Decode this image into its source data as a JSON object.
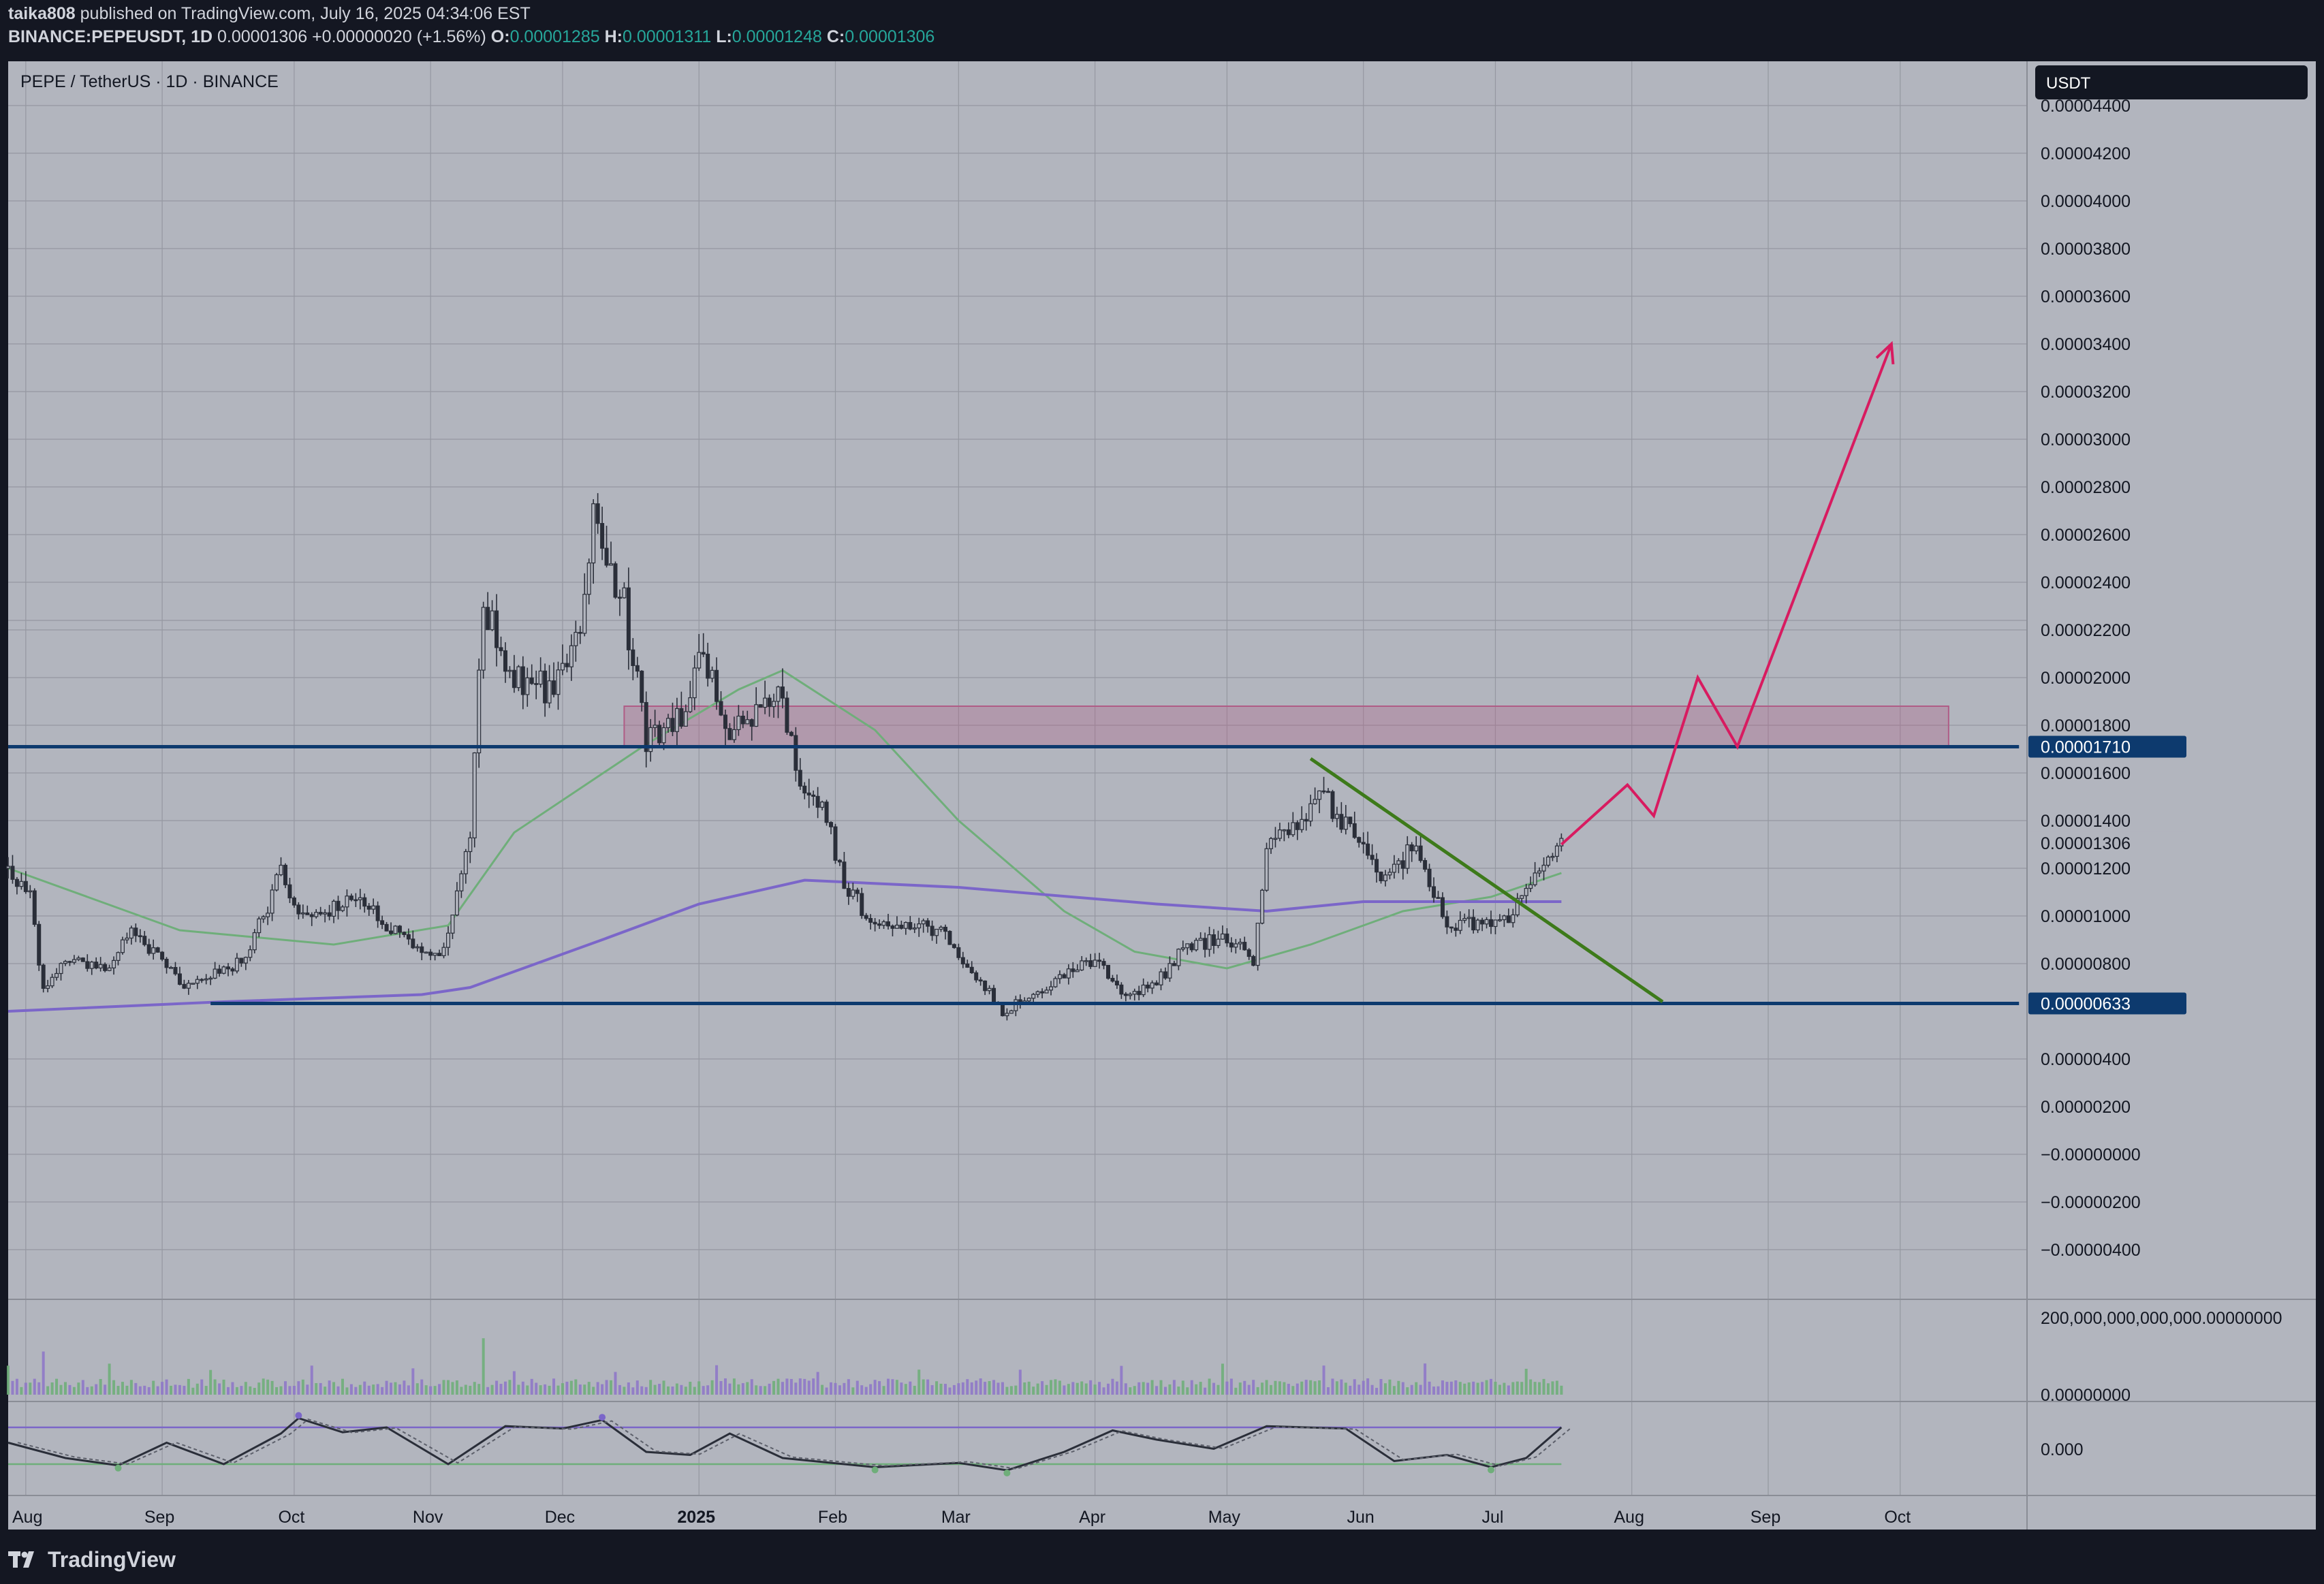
{
  "header": {
    "author": "taika808",
    "published_text": "published on TradingView.com, July 16, 2025 04:34:06 EST",
    "symbol": "BINANCE:PEPEUSDT, 1D",
    "last": "0.00001306",
    "change": "+0.00000020 (+1.56%)",
    "o_label": "O:",
    "o": "0.00001285",
    "h_label": "H:",
    "h": "0.00001311",
    "l_label": "L:",
    "l": "0.00001248",
    "c_label": "C:",
    "c": "0.00001306"
  },
  "chart_title": "PEPE / TetherUS · 1D · BINANCE",
  "currency_label": "USDT",
  "footer": {
    "brand": "TradingView"
  },
  "colors": {
    "pane_bg": "#b2b5be",
    "grid": "#9598a1",
    "candle": "#2a2e39",
    "resistance_zone": "#b05c86",
    "level_line": "#0d3a6e",
    "trendline": "#3d7a1a",
    "projection": "#d81b60",
    "ma_fast": "#6fae7a",
    "ma_slow": "#7b66c9",
    "volume_up": "#6fae7a",
    "volume_down": "#8e78c8"
  },
  "chart_data": [
    {
      "type": "candlestick",
      "title": "PEPE / TetherUS · 1D · BINANCE",
      "x_tick_labels": [
        "Aug",
        "Sep",
        "Oct",
        "Nov",
        "Dec",
        "2025",
        "Feb",
        "Mar",
        "Apr",
        "May",
        "Jun",
        "Jul",
        "Aug",
        "Sep",
        "Oct"
      ],
      "x_range": [
        "2024-07-28",
        "2025-10-28"
      ],
      "y_tick_labels": [
        "0.00004400",
        "0.00004200",
        "0.00004000",
        "0.00003800",
        "0.00003600",
        "0.00003400",
        "0.00003200",
        "0.00003000",
        "0.00002800",
        "0.00002600",
        "0.00002400",
        "0.00002200",
        "0.00002000",
        "0.00001800",
        "0.00001600",
        "0.00001400",
        "0.00001200",
        "0.00001000",
        "0.00000800",
        "0.00000400",
        "0.00000200",
        "−0.00000000",
        "−0.00000200",
        "−0.00000400"
      ],
      "ylim": [
        -4.9e-06,
        4.58e-05
      ],
      "price_tags": [
        {
          "label": "0.00001710",
          "value": 1.71e-05,
          "style": "filled"
        },
        {
          "label": "0.00001306",
          "value": 1.306e-05,
          "style": "plain"
        },
        {
          "label": "0.00000633",
          "value": 6.33e-06,
          "style": "filled"
        }
      ],
      "horizontal_levels": [
        {
          "name": "resistance",
          "value": 1.71e-05,
          "from": "2024-07-28",
          "to": "2025-10-28"
        },
        {
          "name": "support",
          "value": 6.33e-06,
          "from": "2024-09-12",
          "to": "2025-10-28"
        }
      ],
      "resistance_zone": {
        "from": "2024-12-15",
        "to": "2025-10-12",
        "low": 1.71e-05,
        "high": 1.88e-05
      },
      "trendline": [
        {
          "x": "2025-05-20",
          "y": 1.66e-05
        },
        {
          "x": "2025-08-08",
          "y": 6.4e-06
        }
      ],
      "projection_path": [
        {
          "x": "2025-07-16",
          "y": 1.3e-05
        },
        {
          "x": "2025-07-31",
          "y": 1.55e-05
        },
        {
          "x": "2025-08-06",
          "y": 1.42e-05
        },
        {
          "x": "2025-08-16",
          "y": 2e-05
        },
        {
          "x": "2025-08-25",
          "y": 1.71e-05
        },
        {
          "x": "2025-09-29",
          "y": 3.4e-05
        }
      ],
      "candles_anchors": [
        {
          "d": "2024-07-28",
          "p": 1.2e-05
        },
        {
          "d": "2024-08-02",
          "p": 1.08e-05
        },
        {
          "d": "2024-08-05",
          "p": 6.8e-06
        },
        {
          "d": "2024-08-10",
          "p": 8.2e-06
        },
        {
          "d": "2024-08-20",
          "p": 7.8e-06
        },
        {
          "d": "2024-08-25",
          "p": 9.6e-06
        },
        {
          "d": "2024-09-06",
          "p": 7e-06
        },
        {
          "d": "2024-09-20",
          "p": 8.2e-06
        },
        {
          "d": "2024-09-28",
          "p": 1.18e-05
        },
        {
          "d": "2024-10-03",
          "p": 9.8e-06
        },
        {
          "d": "2024-10-15",
          "p": 1.08e-05
        },
        {
          "d": "2024-10-25",
          "p": 9.2e-06
        },
        {
          "d": "2024-11-03",
          "p": 8.2e-06
        },
        {
          "d": "2024-11-10",
          "p": 1.3e-05
        },
        {
          "d": "2024-11-13",
          "p": 2.3e-05
        },
        {
          "d": "2024-11-20",
          "p": 2e-05
        },
        {
          "d": "2024-11-28",
          "p": 1.95e-05
        },
        {
          "d": "2024-12-05",
          "p": 2.15e-05
        },
        {
          "d": "2024-12-08",
          "p": 2.65e-05
        },
        {
          "d": "2024-12-15",
          "p": 2.3e-05
        },
        {
          "d": "2024-12-20",
          "p": 1.75e-05
        },
        {
          "d": "2024-12-28",
          "p": 1.85e-05
        },
        {
          "d": "2025-01-01",
          "p": 2.1e-05
        },
        {
          "d": "2025-01-08",
          "p": 1.78e-05
        },
        {
          "d": "2025-01-15",
          "p": 1.85e-05
        },
        {
          "d": "2025-01-19",
          "p": 2e-05
        },
        {
          "d": "2025-01-23",
          "p": 1.6e-05
        },
        {
          "d": "2025-01-30",
          "p": 1.4e-05
        },
        {
          "d": "2025-02-03",
          "p": 1.15e-05
        },
        {
          "d": "2025-02-10",
          "p": 9.5e-06
        },
        {
          "d": "2025-02-25",
          "p": 9.5e-06
        },
        {
          "d": "2025-03-05",
          "p": 7.5e-06
        },
        {
          "d": "2025-03-11",
          "p": 6e-06
        },
        {
          "d": "2025-03-25",
          "p": 7.5e-06
        },
        {
          "d": "2025-04-01",
          "p": 8.2e-06
        },
        {
          "d": "2025-04-07",
          "p": 6.6e-06
        },
        {
          "d": "2025-04-15",
          "p": 7.2e-06
        },
        {
          "d": "2025-04-22",
          "p": 8.8e-06
        },
        {
          "d": "2025-05-01",
          "p": 9e-06
        },
        {
          "d": "2025-05-07",
          "p": 8.2e-06
        },
        {
          "d": "2025-05-10",
          "p": 1.3e-05
        },
        {
          "d": "2025-05-18",
          "p": 1.42e-05
        },
        {
          "d": "2025-05-22",
          "p": 1.52e-05
        },
        {
          "d": "2025-05-30",
          "p": 1.32e-05
        },
        {
          "d": "2025-06-05",
          "p": 1.18e-05
        },
        {
          "d": "2025-06-13",
          "p": 1.28e-05
        },
        {
          "d": "2025-06-20",
          "p": 9.8e-06
        },
        {
          "d": "2025-06-28",
          "p": 9.5e-06
        },
        {
          "d": "2025-07-05",
          "p": 1e-05
        },
        {
          "d": "2025-07-10",
          "p": 1.2e-05
        },
        {
          "d": "2025-07-16",
          "p": 1.3e-05
        }
      ],
      "series": [
        {
          "name": "",
          "line": "ma_fast",
          "points": [
            {
              "d": "2024-07-28",
              "v": 1.2e-05
            },
            {
              "d": "2024-09-05",
              "v": 9.4e-06
            },
            {
              "d": "2024-10-10",
              "v": 8.8e-06
            },
            {
              "d": "2024-11-05",
              "v": 9.6e-06
            },
            {
              "d": "2024-11-20",
              "v": 1.35e-05
            },
            {
              "d": "2024-12-20",
              "v": 1.72e-05
            },
            {
              "d": "2025-01-10",
              "v": 1.95e-05
            },
            {
              "d": "2025-01-20",
              "v": 2.03e-05
            },
            {
              "d": "2025-02-10",
              "v": 1.78e-05
            },
            {
              "d": "2025-03-01",
              "v": 1.4e-05
            },
            {
              "d": "2025-03-25",
              "v": 1.02e-05
            },
            {
              "d": "2025-04-10",
              "v": 8.5e-06
            },
            {
              "d": "2025-05-01",
              "v": 7.8e-06
            },
            {
              "d": "2025-05-20",
              "v": 8.8e-06
            },
            {
              "d": "2025-06-10",
              "v": 1.02e-05
            },
            {
              "d": "2025-06-30",
              "v": 1.08e-05
            },
            {
              "d": "2025-07-16",
              "v": 1.18e-05
            }
          ]
        },
        {
          "name": "",
          "line": "ma_slow",
          "points": [
            {
              "d": "2024-07-28",
              "v": 6e-06
            },
            {
              "d": "2024-09-15",
              "v": 6.4e-06
            },
            {
              "d": "2024-10-30",
              "v": 6.7e-06
            },
            {
              "d": "2024-11-10",
              "v": 7e-06
            },
            {
              "d": "2024-12-10",
              "v": 9e-06
            },
            {
              "d": "2025-01-01",
              "v": 1.05e-05
            },
            {
              "d": "2025-01-25",
              "v": 1.15e-05
            },
            {
              "d": "2025-03-01",
              "v": 1.12e-05
            },
            {
              "d": "2025-04-15",
              "v": 1.05e-05
            },
            {
              "d": "2025-05-10",
              "v": 1.02e-05
            },
            {
              "d": "2025-06-01",
              "v": 1.06e-05
            },
            {
              "d": "2025-07-16",
              "v": 1.06e-05
            }
          ]
        }
      ]
    },
    {
      "type": "bar",
      "title": "",
      "y_tick_labels": [
        "200,000,000,000,000.00000000",
        "0.00000000"
      ]
    },
    {
      "type": "line",
      "title": "",
      "y_tick_labels": [
        "0.000"
      ],
      "upper_band": 0.8,
      "lower_band": 0.2,
      "band_range": [
        "2024-07-28",
        "2025-07-16"
      ],
      "series": [
        {
          "name": "",
          "points": [
            {
              "d": "2024-07-28",
              "v": 0.55
            },
            {
              "d": "2024-08-10",
              "v": 0.3
            },
            {
              "d": "2024-08-22",
              "v": 0.18
            },
            {
              "d": "2024-09-02",
              "v": 0.55
            },
            {
              "d": "2024-09-15",
              "v": 0.2
            },
            {
              "d": "2024-09-28",
              "v": 0.7
            },
            {
              "d": "2024-10-02",
              "v": 0.95
            },
            {
              "d": "2024-10-12",
              "v": 0.72
            },
            {
              "d": "2024-10-22",
              "v": 0.8
            },
            {
              "d": "2024-11-05",
              "v": 0.2
            },
            {
              "d": "2024-11-18",
              "v": 0.82
            },
            {
              "d": "2024-12-01",
              "v": 0.78
            },
            {
              "d": "2024-12-10",
              "v": 0.92
            },
            {
              "d": "2024-12-20",
              "v": 0.4
            },
            {
              "d": "2024-12-30",
              "v": 0.35
            },
            {
              "d": "2025-01-08",
              "v": 0.7
            },
            {
              "d": "2025-01-20",
              "v": 0.3
            },
            {
              "d": "2025-02-10",
              "v": 0.15
            },
            {
              "d": "2025-03-01",
              "v": 0.22
            },
            {
              "d": "2025-03-12",
              "v": 0.1
            },
            {
              "d": "2025-03-25",
              "v": 0.4
            },
            {
              "d": "2025-04-05",
              "v": 0.75
            },
            {
              "d": "2025-04-15",
              "v": 0.6
            },
            {
              "d": "2025-04-28",
              "v": 0.45
            },
            {
              "d": "2025-05-10",
              "v": 0.82
            },
            {
              "d": "2025-05-28",
              "v": 0.78
            },
            {
              "d": "2025-06-08",
              "v": 0.25
            },
            {
              "d": "2025-06-20",
              "v": 0.35
            },
            {
              "d": "2025-06-30",
              "v": 0.15
            },
            {
              "d": "2025-07-08",
              "v": 0.3
            },
            {
              "d": "2025-07-16",
              "v": 0.8
            }
          ]
        }
      ]
    }
  ]
}
